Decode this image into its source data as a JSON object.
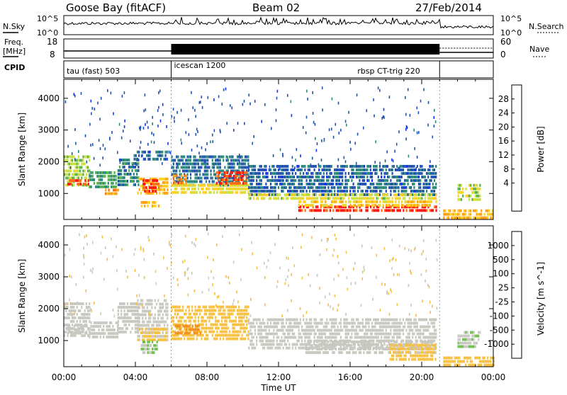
{
  "header": {
    "station": "Goose Bay (fitACF)",
    "beam": "Beam 02",
    "date": "27/Feb/2014"
  },
  "status_panels": {
    "nsky_label": "N.Sky",
    "nsky_ticks": [
      "10^5",
      "10^0"
    ],
    "nsearch_label": "N.Search",
    "nsearch_ticks": [
      "10^5",
      "10^0"
    ],
    "freq_label_line1": "Freq.",
    "freq_label_line2": "[MHz]",
    "freq_ticks": [
      "18",
      "8"
    ],
    "nave_label": "Nave",
    "nave_ticks": [
      "60",
      "0"
    ],
    "cpid_label": "CPID",
    "modes": [
      {
        "label": "tau (fast) 503",
        "start_hour": 0.0
      },
      {
        "label": "icescan 1200",
        "start_hour": 6.0
      },
      {
        "label": "rbsp CT-trig 220",
        "start_hour": 21.0
      }
    ]
  },
  "chart_data": [
    {
      "type": "heatmap",
      "name": "power",
      "ylabel": "Slant Range [km]",
      "xlabel": "",
      "xlim": [
        0,
        24
      ],
      "ylim": [
        180,
        4600
      ],
      "yticks": [
        1000,
        2000,
        3000,
        4000
      ],
      "colorbar_label": "Power [dB]",
      "colorbar_ticks": [
        "28",
        "24",
        "20",
        "16",
        "12",
        "8",
        "4"
      ],
      "colorbar_colors": [
        "#ff1010",
        "#ff6a10",
        "#ffa010",
        "#ffd020",
        "#c8e040",
        "#58b04a",
        "#2a8a7a",
        "#2050b0",
        "#1030ff"
      ],
      "colorbar_range": [
        0,
        30
      ],
      "regions": [
        {
          "x": [
            0.0,
            1.4
          ],
          "y": [
            1200,
            2200
          ],
          "value": 14
        },
        {
          "x": [
            0.2,
            1.4
          ],
          "y": [
            1250,
            1450
          ],
          "value": 26
        },
        {
          "x": [
            1.4,
            2.9
          ],
          "y": [
            1200,
            1700
          ],
          "value": 10
        },
        {
          "x": [
            2.3,
            3.0
          ],
          "y": [
            950,
            1150
          ],
          "value": 22
        },
        {
          "x": [
            3.0,
            4.2
          ],
          "y": [
            1300,
            2100
          ],
          "value": 8
        },
        {
          "x": [
            4.1,
            5.8
          ],
          "y": [
            1000,
            1500
          ],
          "value": 20
        },
        {
          "x": [
            4.4,
            5.3
          ],
          "y": [
            1100,
            1450
          ],
          "value": 27
        },
        {
          "x": [
            4.3,
            5.3
          ],
          "y": [
            620,
            760
          ],
          "value": 20
        },
        {
          "x": [
            3.9,
            5.8
          ],
          "y": [
            2100,
            2350
          ],
          "value": 6
        },
        {
          "x": [
            6.0,
            10.3
          ],
          "y": [
            1300,
            2200
          ],
          "value": 7
        },
        {
          "x": [
            6.0,
            10.3
          ],
          "y": [
            1000,
            1300
          ],
          "value": 17
        },
        {
          "x": [
            8.5,
            10.2
          ],
          "y": [
            1350,
            1700
          ],
          "value": 26
        },
        {
          "x": [
            6.1,
            6.8
          ],
          "y": [
            1350,
            1600
          ],
          "value": 24
        },
        {
          "x": [
            10.3,
            20.8
          ],
          "y": [
            1000,
            1900
          ],
          "value": 6
        },
        {
          "x": [
            10.3,
            20.8
          ],
          "y": [
            780,
            1000
          ],
          "value": 16
        },
        {
          "x": [
            13.1,
            20.8
          ],
          "y": [
            440,
            620
          ],
          "value": 28
        },
        {
          "x": [
            13.1,
            20.8
          ],
          "y": [
            620,
            780
          ],
          "value": 19
        },
        {
          "x": [
            21.2,
            24.0
          ],
          "y": [
            200,
            500
          ],
          "value": 20
        },
        {
          "x": [
            22.0,
            23.3
          ],
          "y": [
            800,
            1300
          ],
          "value": 15
        }
      ]
    },
    {
      "type": "heatmap",
      "name": "velocity",
      "ylabel": "Slant Range [km]",
      "xlabel": "Time UT",
      "xlim": [
        0,
        24
      ],
      "ylim": [
        180,
        4600
      ],
      "yticks": [
        1000,
        2000,
        3000,
        4000
      ],
      "xtick_labels": [
        "00:00",
        "04:00",
        "08:00",
        "12:00",
        "16:00",
        "20:00",
        "00:00"
      ],
      "xtick_hours": [
        0,
        4,
        8,
        12,
        16,
        20,
        24
      ],
      "colorbar_label": "Velocity [m s^-1]",
      "colorbar_ticks": [
        "1000",
        "500",
        "100",
        "25",
        "-25",
        "-100",
        "-500",
        "-1000"
      ],
      "colorbar_colors": [
        "#1f3fc0",
        "#3a7a8a",
        "#2a9a3a",
        "#70c050",
        "#c8c8c0",
        "#f8c040",
        "#f09020",
        "#f05010",
        "#ff1010"
      ],
      "colorbar_range": [
        -1200,
        1200
      ],
      "regions": [
        {
          "x": [
            0.0,
            1.4
          ],
          "y": [
            1200,
            2200
          ],
          "value": 60
        },
        {
          "x": [
            0.2,
            1.4
          ],
          "y": [
            1250,
            1500
          ],
          "value": 0
        },
        {
          "x": [
            1.4,
            3.0
          ],
          "y": [
            1150,
            1600
          ],
          "value": 0
        },
        {
          "x": [
            3.0,
            4.2
          ],
          "y": [
            1300,
            2200
          ],
          "value": 0
        },
        {
          "x": [
            4.1,
            5.8
          ],
          "y": [
            1300,
            2300
          ],
          "value": 0
        },
        {
          "x": [
            4.1,
            5.8
          ],
          "y": [
            1000,
            1400
          ],
          "value": -150
        },
        {
          "x": [
            4.3,
            5.2
          ],
          "y": [
            600,
            1000
          ],
          "value": 150
        },
        {
          "x": [
            6.0,
            10.3
          ],
          "y": [
            1100,
            2100
          ],
          "value": -200
        },
        {
          "x": [
            6.2,
            7.6
          ],
          "y": [
            1200,
            1500
          ],
          "value": -450
        },
        {
          "x": [
            10.3,
            20.8
          ],
          "y": [
            800,
            1700
          ],
          "value": 0
        },
        {
          "x": [
            13.5,
            20.8
          ],
          "y": [
            620,
            1000
          ],
          "value": 0
        },
        {
          "x": [
            18.2,
            20.8
          ],
          "y": [
            450,
            900
          ],
          "value": -300
        },
        {
          "x": [
            21.2,
            24.0
          ],
          "y": [
            200,
            500
          ],
          "value": -200
        },
        {
          "x": [
            22.0,
            23.3
          ],
          "y": [
            800,
            1300
          ],
          "value": 120
        }
      ]
    }
  ]
}
